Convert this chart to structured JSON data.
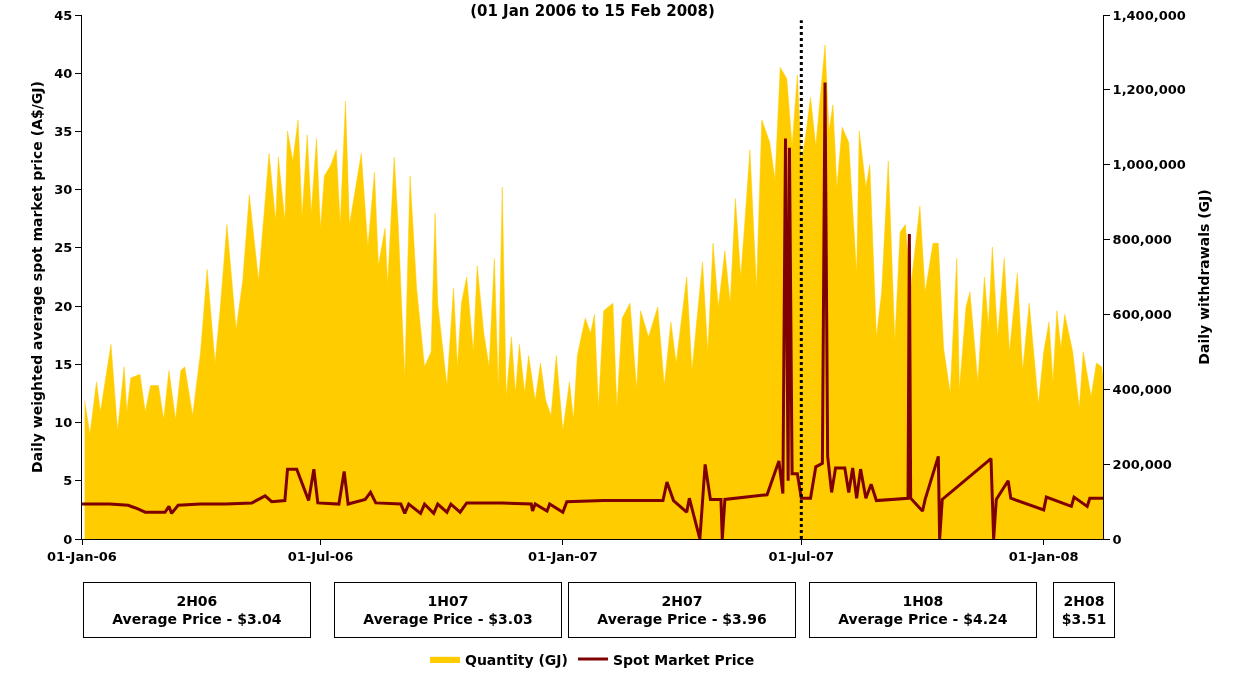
{
  "chart_data": {
    "type": "area",
    "title": "(01 Jan 2006 to 15 Feb 2008)",
    "ylabel": "Daily weighted average spot market price (A$/GJ)",
    "y2label": "Daily withdrawals (GJ)",
    "xlim": [
      "2006-01-01",
      "2008-02-15"
    ],
    "xticks": [
      {
        "value": "2006-01-01",
        "label": "01-Jan-06"
      },
      {
        "value": "2006-07-01",
        "label": "01-Jul-06"
      },
      {
        "value": "2007-01-01",
        "label": "01-Jan-07"
      },
      {
        "value": "2007-07-01",
        "label": "01-Jul-07"
      },
      {
        "value": "2008-01-01",
        "label": "01-Jan-08"
      }
    ],
    "ylim": [
      0,
      45
    ],
    "yticks": [
      0,
      5,
      10,
      15,
      20,
      25,
      30,
      35,
      40,
      45
    ],
    "y2lim": [
      0,
      1400000
    ],
    "y2ticks": [
      {
        "value": 0,
        "label": "0"
      },
      {
        "value": 200000,
        "label": "200,000"
      },
      {
        "value": 400000,
        "label": "400,000"
      },
      {
        "value": 600000,
        "label": "600,000"
      },
      {
        "value": 800000,
        "label": "800,000"
      },
      {
        "value": 1000000,
        "label": "1,000,000"
      },
      {
        "value": 1200000,
        "label": "1,200,000"
      },
      {
        "value": 1400000,
        "label": "1,400,000"
      }
    ],
    "grid": false,
    "legend": "bottom",
    "series": [
      {
        "name": "Quantity (GJ)",
        "axis": "y2",
        "color": "#ffcc00",
        "x": [
          "2006-01-03",
          "2006-01-07",
          "2006-01-12",
          "2006-01-15",
          "2006-01-23",
          "2006-01-28",
          "2006-02-02",
          "2006-02-04",
          "2006-02-07",
          "2006-02-14",
          "2006-02-18",
          "2006-02-22",
          "2006-02-28",
          "2006-03-04",
          "2006-03-08",
          "2006-03-13",
          "2006-03-17",
          "2006-03-20",
          "2006-03-26",
          "2006-04-01",
          "2006-04-06",
          "2006-04-12",
          "2006-04-16",
          "2006-04-21",
          "2006-04-28",
          "2006-05-03",
          "2006-05-08",
          "2006-05-15",
          "2006-05-23",
          "2006-05-28",
          "2006-05-30",
          "2006-06-04",
          "2006-06-06",
          "2006-06-10",
          "2006-06-14",
          "2006-06-17",
          "2006-06-21",
          "2006-06-24",
          "2006-06-28",
          "2006-07-01",
          "2006-07-04",
          "2006-07-09",
          "2006-07-13",
          "2006-07-16",
          "2006-07-20",
          "2006-07-23",
          "2006-08-01",
          "2006-08-06",
          "2006-08-11",
          "2006-08-14",
          "2006-08-19",
          "2006-08-21",
          "2006-08-26",
          "2006-08-29",
          "2006-09-03",
          "2006-09-07",
          "2006-09-12",
          "2006-09-18",
          "2006-09-23",
          "2006-09-26",
          "2006-09-28",
          "2006-10-05",
          "2006-10-10",
          "2006-10-13",
          "2006-10-16",
          "2006-10-20",
          "2006-10-25",
          "2006-10-28",
          "2006-11-02",
          "2006-11-06",
          "2006-11-10",
          "2006-11-13",
          "2006-11-16",
          "2006-11-19",
          "2006-11-23",
          "2006-11-26",
          "2006-11-29",
          "2006-12-03",
          "2006-12-06",
          "2006-12-11",
          "2006-12-15",
          "2006-12-19",
          "2006-12-23",
          "2006-12-27",
          "2007-01-01",
          "2007-01-06",
          "2007-01-09",
          "2007-01-12",
          "2007-01-18",
          "2007-01-22",
          "2007-01-25",
          "2007-01-28",
          "2007-02-01",
          "2007-02-08",
          "2007-02-11",
          "2007-02-15",
          "2007-02-21",
          "2007-02-26",
          "2007-03-01",
          "2007-03-07",
          "2007-03-14",
          "2007-03-19",
          "2007-03-24",
          "2007-03-28",
          "2007-04-05",
          "2007-04-09",
          "2007-04-17",
          "2007-04-21",
          "2007-04-25",
          "2007-04-29",
          "2007-05-04",
          "2007-05-08",
          "2007-05-12",
          "2007-05-16",
          "2007-05-19",
          "2007-05-23",
          "2007-05-28",
          "2007-06-01",
          "2007-06-07",
          "2007-06-11",
          "2007-06-15",
          "2007-06-20",
          "2007-06-24",
          "2007-06-28",
          "2007-07-01",
          "2007-07-04",
          "2007-07-08",
          "2007-07-12",
          "2007-07-19",
          "2007-07-22",
          "2007-07-25",
          "2007-07-28",
          "2007-08-01",
          "2007-08-06",
          "2007-08-09",
          "2007-08-12",
          "2007-08-14",
          "2007-08-19",
          "2007-08-22",
          "2007-08-27",
          "2007-08-31",
          "2007-09-05",
          "2007-09-10",
          "2007-09-14",
          "2007-09-18",
          "2007-09-22",
          "2007-09-29",
          "2007-10-03",
          "2007-10-09",
          "2007-10-13",
          "2007-10-17",
          "2007-10-22",
          "2007-10-27",
          "2007-10-29",
          "2007-11-03",
          "2007-11-06",
          "2007-11-12",
          "2007-11-17",
          "2007-11-20",
          "2007-11-23",
          "2007-11-27",
          "2007-12-02",
          "2007-12-06",
          "2007-12-12",
          "2007-12-16",
          "2007-12-21",
          "2007-12-28",
          "2008-01-01",
          "2008-01-05",
          "2008-01-08",
          "2008-01-11",
          "2008-01-14",
          "2008-01-17",
          "2008-01-23",
          "2008-01-28",
          "2008-01-31",
          "2008-02-06",
          "2008-02-10",
          "2008-02-14",
          "2008-02-15"
        ],
        "values": [
          370000,
          280000,
          420000,
          340000,
          520000,
          290000,
          460000,
          340000,
          430000,
          440000,
          340000,
          410000,
          410000,
          320000,
          450000,
          320000,
          450000,
          460000,
          330000,
          500000,
          720000,
          470000,
          620000,
          840000,
          560000,
          690000,
          920000,
          690000,
          1030000,
          850000,
          1020000,
          850000,
          1090000,
          1010000,
          1120000,
          860000,
          1080000,
          870000,
          1070000,
          830000,
          970000,
          1000000,
          1040000,
          840000,
          1170000,
          840000,
          1030000,
          780000,
          980000,
          730000,
          830000,
          680000,
          1020000,
          840000,
          430000,
          970000,
          670000,
          460000,
          500000,
          870000,
          630000,
          410000,
          670000,
          460000,
          630000,
          700000,
          500000,
          730000,
          550000,
          460000,
          750000,
          400000,
          940000,
          380000,
          540000,
          390000,
          520000,
          390000,
          490000,
          370000,
          470000,
          370000,
          330000,
          490000,
          290000,
          420000,
          320000,
          490000,
          590000,
          550000,
          600000,
          350000,
          610000,
          630000,
          350000,
          590000,
          630000,
          400000,
          610000,
          540000,
          620000,
          410000,
          580000,
          470000,
          700000,
          450000,
          740000,
          500000,
          790000,
          620000,
          770000,
          630000,
          910000,
          700000,
          840000,
          1040000,
          670000,
          1120000,
          1060000,
          960000,
          1260000,
          1230000,
          1050000,
          1240000,
          1010000,
          1070000,
          1180000,
          1050000,
          1320000,
          1090000,
          1160000,
          940000,
          1100000,
          1060000,
          880000,
          710000,
          1090000,
          940000,
          1000000,
          540000,
          660000,
          1010000,
          530000,
          820000,
          840000,
          670000,
          890000,
          660000,
          790000,
          790000,
          510000,
          390000,
          750000,
          400000,
          620000,
          660000,
          420000,
          700000,
          570000,
          780000,
          540000,
          750000,
          500000,
          710000,
          450000,
          630000,
          360000,
          500000,
          580000,
          420000,
          610000,
          510000,
          600000,
          500000,
          350000,
          500000,
          380000,
          470000,
          460000,
          430000
        ]
      },
      {
        "name": "Spot Market Price",
        "type": "line",
        "axis": "y",
        "color": "#7f0000",
        "x": [
          "2006-01-01",
          "2006-01-22",
          "2006-02-05",
          "2006-02-12",
          "2006-02-18",
          "2006-03-05",
          "2006-03-08",
          "2006-03-10",
          "2006-03-15",
          "2006-04-01",
          "2006-04-20",
          "2006-05-10",
          "2006-05-20",
          "2006-05-25",
          "2006-06-04",
          "2006-06-06",
          "2006-06-13",
          "2006-06-18",
          "2006-06-22",
          "2006-06-26",
          "2006-06-29",
          "2006-07-15",
          "2006-07-19",
          "2006-07-22",
          "2006-08-04",
          "2006-08-08",
          "2006-08-12",
          "2006-08-31",
          "2006-09-03",
          "2006-09-06",
          "2006-09-15",
          "2006-09-18",
          "2006-09-25",
          "2006-09-28",
          "2006-10-05",
          "2006-10-08",
          "2006-10-15",
          "2006-10-20",
          "2006-11-15",
          "2006-12-08",
          "2006-12-09",
          "2006-12-11",
          "2006-12-20",
          "2006-12-22",
          "2007-01-01",
          "2007-01-04",
          "2007-02-01",
          "2007-03-18",
          "2007-03-21",
          "2007-03-26",
          "2007-04-05",
          "2007-04-07",
          "2007-04-15",
          "2007-04-19",
          "2007-04-23",
          "2007-05-01",
          "2007-05-02",
          "2007-05-04",
          "2007-06-05",
          "2007-06-14",
          "2007-06-17",
          "2007-06-19",
          "2007-06-21",
          "2007-06-22",
          "2007-06-24",
          "2007-06-28",
          "2007-07-01",
          "2007-07-08",
          "2007-07-12",
          "2007-07-17",
          "2007-07-19",
          "2007-07-21",
          "2007-07-24",
          "2007-07-27",
          "2007-08-03",
          "2007-08-06",
          "2007-08-09",
          "2007-08-12",
          "2007-08-15",
          "2007-08-19",
          "2007-08-23",
          "2007-08-27",
          "2007-09-20",
          "2007-09-21",
          "2007-09-22",
          "2007-10-01",
          "2007-10-03",
          "2007-10-13",
          "2007-10-14",
          "2007-10-16",
          "2007-11-22",
          "2007-11-24",
          "2007-11-26",
          "2007-12-05",
          "2007-12-07",
          "2008-01-01",
          "2008-01-03",
          "2008-01-22",
          "2008-01-24",
          "2008-02-03",
          "2008-02-05",
          "2008-02-15"
        ],
        "values": [
          3.0,
          3.0,
          2.9,
          2.6,
          2.3,
          2.3,
          2.8,
          2.2,
          2.9,
          3.0,
          3.0,
          3.1,
          3.7,
          3.2,
          3.3,
          6.0,
          6.0,
          4.5,
          3.3,
          6.0,
          3.1,
          3.0,
          5.8,
          3.0,
          3.4,
          4.0,
          3.1,
          3.0,
          2.2,
          3.0,
          2.2,
          3.0,
          2.2,
          3.0,
          2.3,
          3.0,
          2.3,
          3.1,
          3.1,
          3.0,
          2.4,
          3.0,
          2.4,
          3.0,
          2.3,
          3.2,
          3.3,
          3.3,
          4.9,
          3.3,
          2.3,
          3.5,
          0,
          6.4,
          3.4,
          3.4,
          0,
          3.4,
          3.8,
          6.7,
          3.9,
          34.4,
          5.0,
          33.6,
          5.6,
          5.6,
          3.5,
          3.5,
          6.2,
          6.5,
          39.2,
          7.1,
          4.0,
          6.1,
          6.1,
          4.0,
          6.1,
          3.5,
          6.0,
          3.5,
          4.7,
          3.3,
          3.5,
          26.2,
          3.5,
          2.4,
          3.4,
          7.1,
          0,
          3.4,
          6.9,
          0,
          3.4,
          5.0,
          3.5,
          2.5,
          3.6,
          2.8,
          3.6,
          2.8,
          3.5,
          3.5
        ]
      }
    ],
    "ref_lines": [
      {
        "axis": "x",
        "value": "2007-07-01",
        "color": "#000000",
        "line_style": "dotted"
      }
    ],
    "annotations": [
      "2H06\nAverage Price - $3.04",
      "1H07\nAverage Price - $3.03",
      "2H07\nAverage Price - $3.96",
      "1H08\nAverage Price - $4.24",
      "2H08\n$3.51"
    ]
  }
}
